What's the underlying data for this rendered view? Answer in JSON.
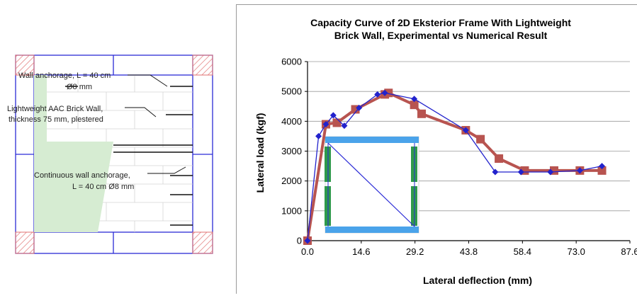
{
  "figure": {
    "annotations": {
      "wall_anchorage_line1": "Wall anchorage, L = 40 cm",
      "wall_anchorage_line2": "Ø8 mm",
      "aac_wall_line1": "Lightweight AAC Brick Wall,",
      "aac_wall_line2": "thickness 75 mm, plestered",
      "continuous_line1": "Continuous wall anchorage,",
      "continuous_line2": "L = 40 cm Ø8 mm"
    }
  },
  "colors": {
    "experimental": "#2222cc",
    "numerical": "#b85450",
    "frame_beam": "#4aa3ea",
    "frame_column": "#2e9a4a",
    "wall_fill": "#d6ecd2",
    "hatch": "#e07070"
  },
  "chart_data": {
    "type": "line",
    "title_line1": "Capacity Curve of 2D Eksterior Frame With Lightweight",
    "title_line2": "Brick Wall, Experimental vs Numerical Result",
    "xlabel": "Lateral deflection (mm)",
    "ylabel": "Lateral load (kgf)",
    "xlim": [
      0,
      87.6
    ],
    "ylim": [
      0,
      6000
    ],
    "xticks": [
      "0.0",
      "14.6",
      "29.2",
      "43.8",
      "58.4",
      "73.0",
      "87.6"
    ],
    "yticks": [
      "0",
      "1000",
      "2000",
      "3000",
      "4000",
      "5000",
      "6000"
    ],
    "grid": "horizontal",
    "series": [
      {
        "marker": "diamond",
        "x": [
          0,
          3,
          5,
          7,
          10,
          14,
          19,
          21,
          29,
          43,
          51,
          58,
          66,
          74,
          80
        ],
        "y": [
          0,
          3500,
          3900,
          4200,
          3850,
          4450,
          4900,
          4950,
          4750,
          3700,
          2300,
          2300,
          2300,
          2350,
          2500
        ]
      },
      {
        "marker": "square",
        "x": [
          0,
          5,
          8,
          13,
          21,
          22,
          29,
          31,
          43,
          47,
          52,
          59,
          67,
          74,
          80
        ],
        "y": [
          0,
          3900,
          3950,
          4400,
          4900,
          4950,
          4550,
          4250,
          3700,
          3400,
          2750,
          2350,
          2350,
          2350,
          2350
        ]
      }
    ]
  }
}
